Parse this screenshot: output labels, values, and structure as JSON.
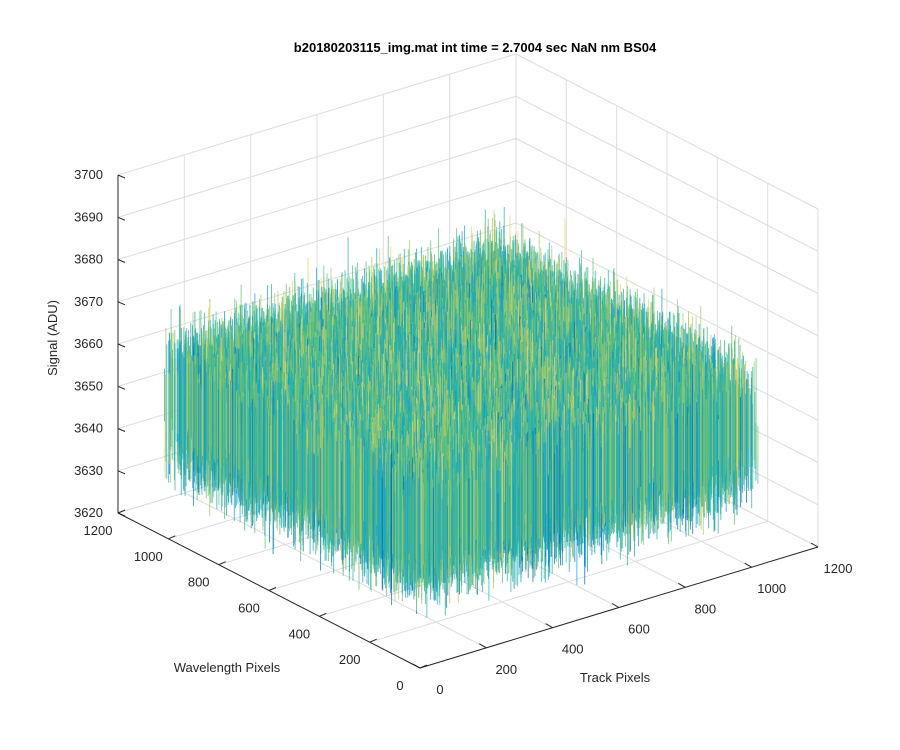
{
  "chart_data": {
    "type": "surface",
    "title": "b20180203115_img.mat int time = 2.7004 sec  NaN nm BS04",
    "xlabel": "Track Pixels",
    "ylabel": "Wavelength Pixels",
    "zlabel": "Signal (ADU)",
    "xlim": [
      0,
      1200
    ],
    "ylim": [
      0,
      1200
    ],
    "zlim": [
      3620,
      3700
    ],
    "x_ticks": [
      "0",
      "200",
      "400",
      "600",
      "800",
      "1000",
      "1200"
    ],
    "y_ticks": [
      "0",
      "200",
      "400",
      "600",
      "800",
      "1000",
      "1200"
    ],
    "z_ticks": [
      "3620",
      "3630",
      "3640",
      "3650",
      "3660",
      "3670",
      "3680",
      "3690",
      "3700"
    ],
    "x_extent": [
      0,
      1024
    ],
    "y_extent": [
      0,
      1024
    ],
    "signal_mean": 3652,
    "signal_spread": [
      3625,
      3690
    ],
    "grid": true,
    "colormap": [
      "#0072bd",
      "#1aa3c8",
      "#29b5a4",
      "#5cbf7a",
      "#a9c96a",
      "#e6d36a",
      "#f5e98a"
    ]
  }
}
